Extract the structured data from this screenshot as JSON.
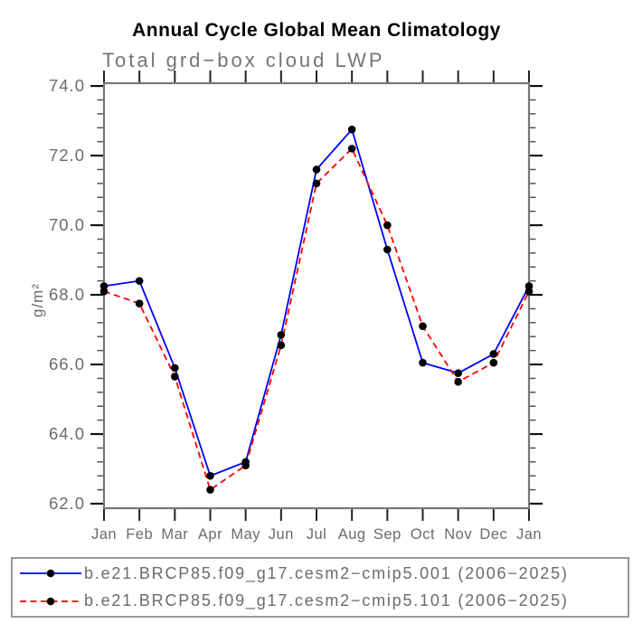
{
  "title": "Annual Cycle Global Mean Climatology",
  "subtitle": "Total grd−box cloud LWP",
  "y_axis_label": "g/m²",
  "chart_data": {
    "type": "line",
    "x_categories": [
      "Jan",
      "Feb",
      "Mar",
      "Apr",
      "May",
      "Jun",
      "Jul",
      "Aug",
      "Sep",
      "Oct",
      "Nov",
      "Dec",
      "Jan"
    ],
    "series": [
      {
        "name": "b.e21.BRCP85.f09_g17.cesm2−cmip5.001 (2006−2025)",
        "color": "#0000ff",
        "line_style": "solid",
        "marker": "filled-circle",
        "marker_color": "#000000",
        "values": [
          68.25,
          68.4,
          65.9,
          62.8,
          63.2,
          66.85,
          71.6,
          72.75,
          69.3,
          66.05,
          65.75,
          66.3,
          68.25
        ]
      },
      {
        "name": "b.e21.BRCP85.f09_g17.cesm2−cmip5.101 (2006−2025)",
        "color": "#ff0000",
        "line_style": "dashed",
        "marker": "filled-circle",
        "marker_color": "#000000",
        "values": [
          68.1,
          67.75,
          65.65,
          62.4,
          63.1,
          66.55,
          71.2,
          72.2,
          70.0,
          67.1,
          65.5,
          66.05,
          68.1
        ]
      }
    ],
    "ylim": [
      61.87,
      74.08
    ],
    "yticks": [
      62,
      64,
      66,
      68,
      70,
      72,
      74
    ],
    "ytick_labels": [
      "62.0",
      "64.0",
      "66.0",
      "68.0",
      "70.0",
      "72.0",
      "74.0"
    ],
    "y_minor_step": 0.4,
    "grid": false,
    "legend_position": "bottom"
  },
  "colors": {
    "axis_frame": "#777777",
    "tick_major": "#111111",
    "tick_minor": "#555555",
    "label_text": "#6b6b6b",
    "title_text": "#000000",
    "legend_border": "#999999"
  }
}
